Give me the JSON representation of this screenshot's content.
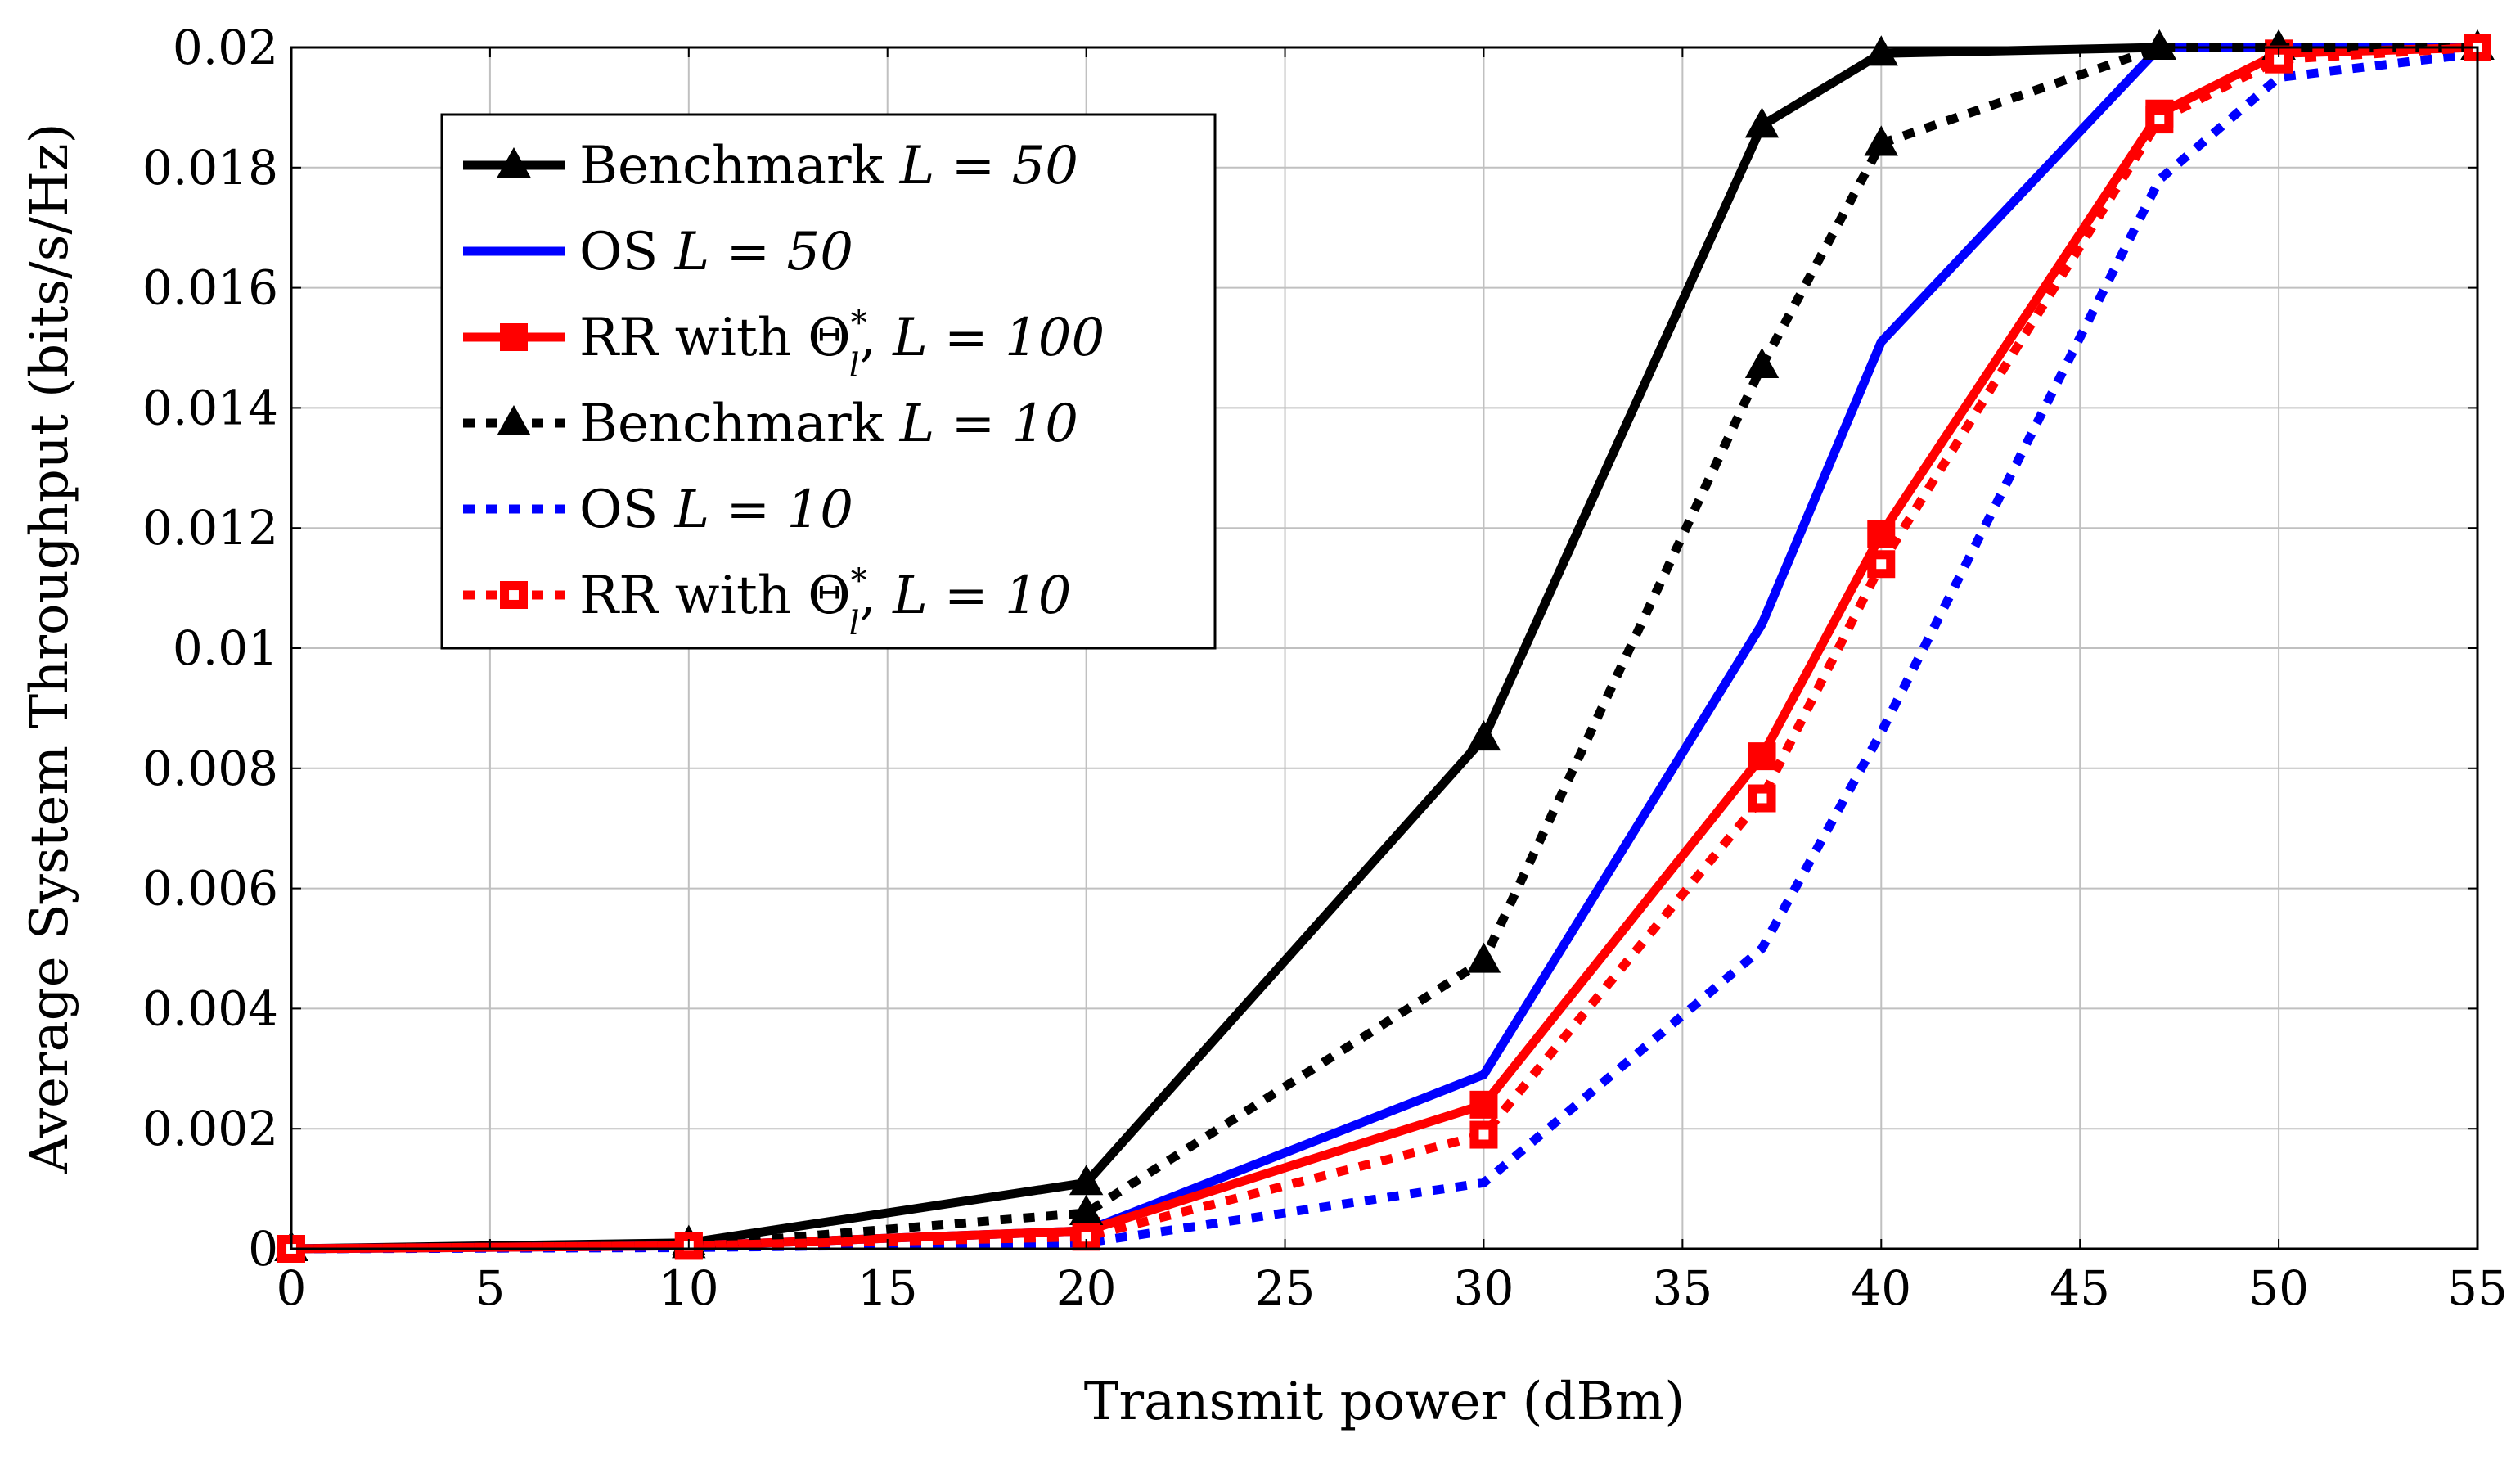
{
  "chart_data": {
    "type": "line",
    "title": "",
    "xlabel": "Transmit power (dBm)",
    "ylabel": "Average System Throughput (bits/s/Hz)",
    "xlim": [
      0,
      55
    ],
    "ylim": [
      0,
      0.02
    ],
    "grid": true,
    "legend_position": "top-left",
    "x_ticks": [
      "0",
      "5",
      "10",
      "15",
      "20",
      "25",
      "30",
      "35",
      "40",
      "45",
      "50",
      "55"
    ],
    "y_ticks": [
      "0",
      "0.002",
      "0.004",
      "0.006",
      "0.008",
      "0.01",
      "0.012",
      "0.014",
      "0.016",
      "0.018",
      "0.02"
    ],
    "series": [
      {
        "name": "Benchmark L = 50",
        "legend_prefix": "Benchmark ",
        "legend_math": "L = 50",
        "legend_suffix": "",
        "color": "#000000",
        "dash": "solid",
        "marker": "triangle",
        "x": [
          0,
          10,
          20,
          30,
          37,
          40,
          47,
          50,
          55
        ],
        "y": [
          0,
          0.0001,
          0.0011,
          0.0085,
          0.0187,
          0.0199,
          0.02,
          0.02,
          0.02
        ]
      },
      {
        "name": "OS L = 50",
        "legend_prefix": "OS ",
        "legend_math": "L = 50",
        "legend_suffix": "",
        "color": "#0000ff",
        "dash": "solid",
        "marker": "none",
        "x": [
          0,
          10,
          20,
          30,
          37,
          40,
          47,
          50,
          55
        ],
        "y": [
          0,
          5e-05,
          0.0003,
          0.0029,
          0.0104,
          0.0151,
          0.02,
          0.02,
          0.02
        ]
      },
      {
        "name": "RR with Θl*, L = 100",
        "legend_prefix": "RR with Θ",
        "legend_math": "L = 100",
        "legend_suffix": "",
        "legend_sup": "*",
        "legend_sub": "l",
        "color": "#ff0000",
        "dash": "solid",
        "marker": "square",
        "x": [
          0,
          10,
          20,
          30,
          37,
          40,
          47,
          50,
          55
        ],
        "y": [
          0,
          5e-05,
          0.0003,
          0.0024,
          0.0082,
          0.0119,
          0.0189,
          0.0199,
          0.02
        ]
      },
      {
        "name": "Benchmark L = 10",
        "legend_prefix": "Benchmark ",
        "legend_math": "L = 10",
        "legend_suffix": "",
        "color": "#000000",
        "dash": "dotted",
        "marker": "triangle",
        "x": [
          0,
          10,
          20,
          30,
          37,
          40,
          47,
          50,
          55
        ],
        "y": [
          0,
          5e-05,
          0.0006,
          0.0048,
          0.0147,
          0.0184,
          0.02,
          0.02,
          0.02
        ]
      },
      {
        "name": "OS L = 10",
        "legend_prefix": "OS ",
        "legend_math": "L = 10",
        "legend_suffix": "",
        "color": "#0000ff",
        "dash": "dotted",
        "marker": "none",
        "x": [
          0,
          10,
          20,
          30,
          37,
          40,
          47,
          50,
          55
        ],
        "y": [
          0,
          2e-05,
          0.0001,
          0.0011,
          0.005,
          0.0086,
          0.0178,
          0.0195,
          0.0199
        ]
      },
      {
        "name": "RR with Θl*, L = 10",
        "legend_prefix": "RR with Θ",
        "legend_math": "L = 10",
        "legend_suffix": "",
        "legend_sup": "*",
        "legend_sub": "l",
        "color": "#ff0000",
        "dash": "dotted",
        "marker": "square-open",
        "x": [
          0,
          10,
          20,
          30,
          37,
          40,
          47,
          50,
          55
        ],
        "y": [
          0,
          5e-05,
          0.0002,
          0.0019,
          0.0075,
          0.0114,
          0.0188,
          0.0198,
          0.02
        ]
      }
    ]
  }
}
